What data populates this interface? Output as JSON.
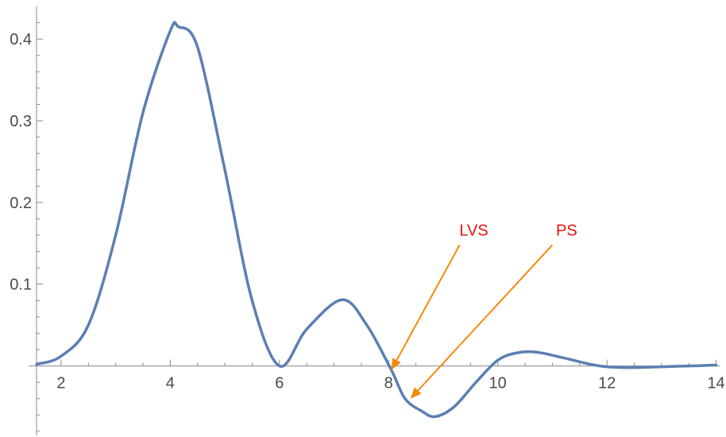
{
  "chart_data": {
    "type": "line",
    "title": "",
    "xlabel": "",
    "ylabel": "",
    "xlim": [
      1.55,
      14.05
    ],
    "ylim": [
      -0.085,
      0.44
    ],
    "grid": false,
    "x_ticks": [
      {
        "value": 2,
        "label": "2"
      },
      {
        "value": 4,
        "label": "4"
      },
      {
        "value": 6,
        "label": "6"
      },
      {
        "value": 8,
        "label": "8"
      },
      {
        "value": 10,
        "label": "10"
      },
      {
        "value": 12,
        "label": "12"
      },
      {
        "value": 14,
        "label": "14"
      }
    ],
    "y_ticks": [
      {
        "value": 0.1,
        "label": "0.1"
      },
      {
        "value": 0.2,
        "label": "0.2"
      },
      {
        "value": 0.3,
        "label": "0.3"
      },
      {
        "value": 0.4,
        "label": "0.4"
      }
    ],
    "series": [
      {
        "color": "#5b7fb3",
        "x": [
          1.55,
          2.0,
          2.5,
          3.0,
          3.5,
          4.0,
          4.15,
          4.5,
          5.0,
          5.5,
          6.0,
          6.5,
          7.15,
          7.6,
          8.05,
          8.3,
          8.6,
          8.85,
          9.2,
          9.6,
          10.0,
          10.35,
          10.7,
          11.2,
          11.7,
          12.0,
          12.45,
          13.0,
          13.5,
          14.0
        ],
        "y": [
          0.002,
          0.012,
          0.05,
          0.16,
          0.31,
          0.41,
          0.415,
          0.39,
          0.24,
          0.08,
          0.0,
          0.045,
          0.081,
          0.05,
          -0.005,
          -0.04,
          -0.055,
          -0.062,
          -0.05,
          -0.02,
          0.007,
          0.016,
          0.017,
          0.01,
          0.002,
          -0.001,
          -0.002,
          -0.001,
          0.0,
          0.001
        ]
      }
    ],
    "annotations": [
      {
        "text": "LVS",
        "color": "#ee1111",
        "arrow_color": "#f58a0a",
        "target": {
          "x": 8.05,
          "y": -0.005
        },
        "tail": {
          "x": 9.3,
          "y": 0.148
        }
      },
      {
        "text": "PS",
        "color": "#ee1111",
        "arrow_color": "#f58a0a",
        "target": {
          "x": 8.4,
          "y": -0.04
        },
        "tail": {
          "x": 11.0,
          "y": 0.148
        }
      }
    ]
  }
}
